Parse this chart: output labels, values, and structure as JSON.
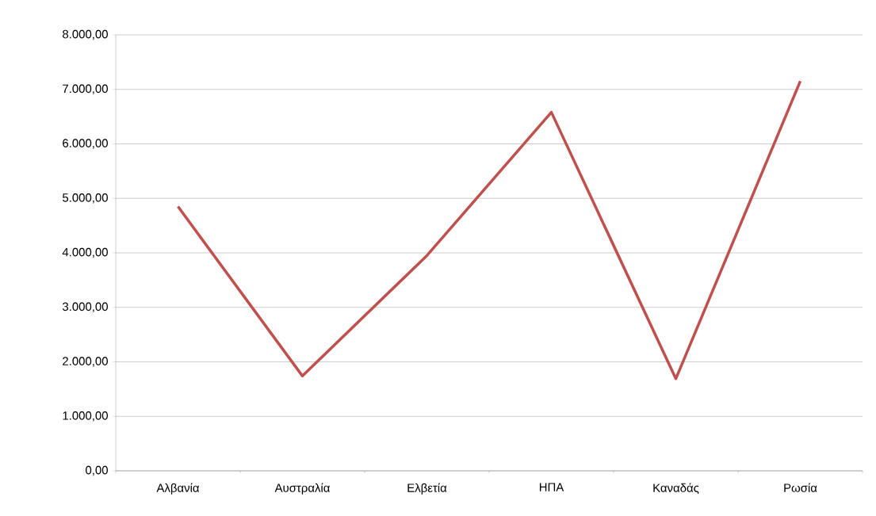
{
  "chart_data": {
    "type": "line",
    "categories": [
      "Αλβανία",
      "Αυστραλία",
      "Ελβετία",
      "ΗΠΑ",
      "Καναδάς",
      "Ρωσία"
    ],
    "values": [
      4850,
      1740,
      3950,
      6580,
      1690,
      7150
    ],
    "color": "#c0504d",
    "ylim": [
      0,
      8000
    ],
    "yticks": [
      {
        "value": 0,
        "label": "0,00"
      },
      {
        "value": 1000,
        "label": "1.000,00"
      },
      {
        "value": 2000,
        "label": "2.000,00"
      },
      {
        "value": 3000,
        "label": "3.000,00"
      },
      {
        "value": 4000,
        "label": "4.000,00"
      },
      {
        "value": 5000,
        "label": "5.000,00"
      },
      {
        "value": 6000,
        "label": "6.000,00"
      },
      {
        "value": 7000,
        "label": "7.000,00"
      },
      {
        "value": 8000,
        "label": "8.000,00"
      }
    ],
    "grid": "y",
    "marker": "none",
    "line_style": "solid"
  }
}
